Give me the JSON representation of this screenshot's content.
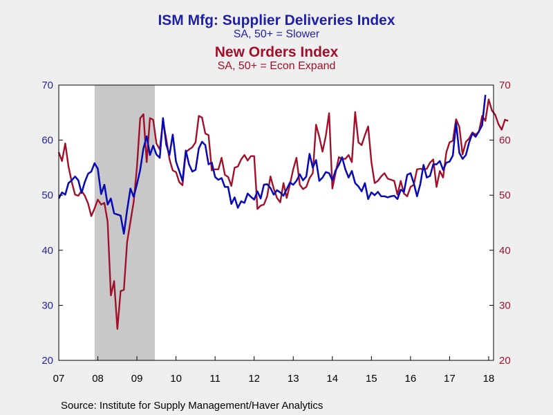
{
  "header": {
    "title1": "ISM Mfg: Supplier Deliveries Index",
    "subtitle1": "SA, 50+ = Slower",
    "title2": "New Orders Index",
    "subtitle2": "SA, 50+ = Econ Expand"
  },
  "footer": {
    "source": "Source:  Institute for Supply Management/Haver Analytics"
  },
  "colors": {
    "supplier": "#0a0ab4",
    "orders": "#a0102a",
    "plot_bg": "#ffffff",
    "shade": "#c8c8c8",
    "page_bg": "#efefef"
  },
  "chart_data": {
    "type": "line",
    "x_start": "2007-01",
    "x_tick_labels": [
      "07",
      "08",
      "09",
      "10",
      "11",
      "12",
      "13",
      "14",
      "15",
      "16",
      "17",
      "18"
    ],
    "ylim": [
      20,
      70
    ],
    "y_ticks": [
      20,
      30,
      40,
      50,
      60,
      70
    ],
    "recession": {
      "start": "2007-12",
      "end": "2009-06"
    },
    "grid": false,
    "series": [
      {
        "name": "Supplier Deliveries Index",
        "axis": "left",
        "values": [
          49.4,
          50.5,
          50.1,
          52.2,
          52.7,
          53.4,
          52.7,
          50.4,
          52.4,
          53.9,
          54.3,
          55.8,
          54.8,
          50.2,
          51.9,
          48.3,
          49.4,
          46.7,
          46.5,
          46.3,
          43.0,
          47.3,
          51.2,
          49.7,
          52.0,
          54.6,
          58.5,
          60.7,
          57.3,
          59.0,
          57.4,
          56.8,
          64.0,
          59.2,
          57.3,
          61.0,
          56.1,
          54.4,
          52.6,
          58.1,
          55.6,
          54.3,
          54.6,
          58.5,
          59.7,
          59.1,
          55.6,
          55.9,
          53.3,
          52.8,
          53.1,
          51.5,
          51.5,
          48.4,
          49.6,
          47.7,
          48.9,
          48.6,
          50.3,
          49.7,
          49.2,
          50.7,
          49.4,
          51.9,
          52.0,
          51.3,
          50.1,
          50.9,
          50.5,
          49.9,
          51.1,
          52.3,
          51.9,
          52.6,
          53.8,
          52.7,
          53.4,
          57.5,
          55.0,
          56.4,
          52.6,
          53.2,
          54.2,
          54.0,
          52.7,
          54.5,
          55.5,
          56.9,
          54.7,
          53.2,
          54.4,
          52.2,
          51.6,
          50.7,
          52.2,
          49.3,
          50.5,
          50.0,
          50.6,
          49.8,
          49.8,
          49.6,
          49.8,
          49.9,
          49.3,
          51.0,
          50.6,
          53.7,
          54.0,
          52.2,
          49.8,
          52.0,
          55.5,
          53.2,
          53.5,
          55.6,
          55.6,
          56.2,
          54.6,
          55.9,
          56.1,
          57.2,
          63.1,
          57.7,
          56.6,
          57.3,
          59.6,
          61.2,
          60.6,
          61.6,
          62.7,
          68.2
        ]
      },
      {
        "name": "New Orders Index",
        "axis": "right",
        "values": [
          57.8,
          56.2,
          59.4,
          55.2,
          52.4,
          50.1,
          49.9,
          50.8,
          49.9,
          48.5,
          46.2,
          47.6,
          49.2,
          48.3,
          48.6,
          45.2,
          31.8,
          34.4,
          25.7,
          32.6,
          32.8,
          41.5,
          45.2,
          48.8,
          55.1,
          64.0,
          64.7,
          56.0,
          64.0,
          63.7,
          59.4,
          58.3,
          63.5,
          60.2,
          56.5,
          54.5,
          54.2,
          52.4,
          51.8,
          57.8,
          58.3,
          58.7,
          59.6,
          64.4,
          64.1,
          61.2,
          60.9,
          54.5,
          54.7,
          54.7,
          56.8,
          53.7,
          53.3,
          51.7,
          55.0,
          55.2,
          56.5,
          57.3,
          56.3,
          57.1,
          57.1,
          47.5,
          48.1,
          48.3,
          49.8,
          53.4,
          51.2,
          49.5,
          48.7,
          52.2,
          49.5,
          52.0,
          54.7,
          56.8,
          51.9,
          51.1,
          51.5,
          53.1,
          54.0,
          62.8,
          60.6,
          57.9,
          60.8,
          64.9,
          51.2,
          54.1,
          56.9,
          56.6,
          56.6,
          57.3,
          56.0,
          65.1,
          59.6,
          59.1,
          60.9,
          62.5,
          56.0,
          52.2,
          52.6,
          53.4,
          54.0,
          53.0,
          52.8,
          52.6,
          50.1,
          52.6,
          50.3,
          49.8,
          51.5,
          51.9,
          54.7,
          54.8,
          54.7,
          54.8,
          55.9,
          56.5,
          51.5,
          54.4,
          53.2,
          57.8,
          59.6,
          59.9,
          63.8,
          62.4,
          57.4,
          59.7,
          60.3,
          61.4,
          61.0,
          61.5,
          64.4,
          63.5
        ],
        "tail": [
          67.4,
          65.4,
          64.6,
          62.9,
          61.9,
          63.7,
          63.5
        ]
      }
    ]
  }
}
